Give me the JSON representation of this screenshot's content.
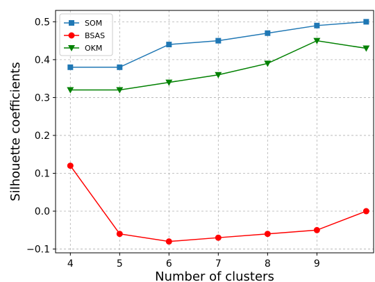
{
  "chart_data": {
    "type": "line",
    "title": "",
    "xlabel": "Number of clusters",
    "ylabel": "Silhouette coefficients",
    "x": [
      4,
      5,
      6,
      7,
      8,
      9,
      10
    ],
    "x_ticks": [
      "4",
      "5",
      "6",
      "7",
      "8",
      "9"
    ],
    "y_ticks": [
      "−0.1",
      "0.0",
      "0.1",
      "0.2",
      "0.3",
      "0.4",
      "0.5"
    ],
    "xlim": [
      3.7,
      10.15
    ],
    "ylim": [
      -0.11,
      0.53
    ],
    "grid": true,
    "legend_position": "top-left",
    "series": [
      {
        "name": "SOM",
        "color": "#1f77b4",
        "marker": "square",
        "values": [
          0.38,
          0.38,
          0.44,
          0.45,
          0.47,
          0.49,
          0.5
        ]
      },
      {
        "name": "BSAS",
        "color": "#ff0000",
        "marker": "circle",
        "values": [
          0.12,
          -0.06,
          -0.08,
          -0.07,
          -0.06,
          -0.05,
          0.0
        ]
      },
      {
        "name": "OKM",
        "color": "#008000",
        "marker": "triangle-down",
        "values": [
          0.32,
          0.32,
          0.34,
          0.36,
          0.39,
          0.45,
          0.43
        ]
      }
    ]
  }
}
